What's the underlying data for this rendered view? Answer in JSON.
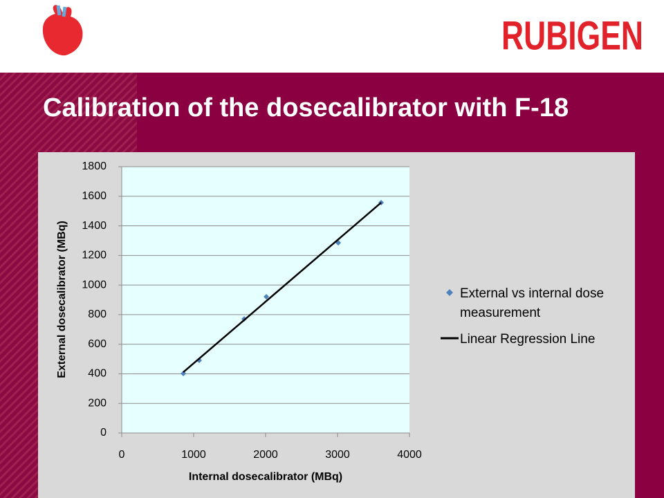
{
  "header": {
    "brand": "RUBIGEN"
  },
  "chart_data": {
    "type": "scatter",
    "title": "Calibration of the dosecalibrator with F-18",
    "x_label": "Internal dosecalibrator (MBq)",
    "y_label": "External dosecalibrator (MBq)",
    "series": [
      {
        "name": "External vs internal dose measurement",
        "color": "#4f81bd",
        "marker": "diamond",
        "x": [
          856,
          1077,
          1702,
          2010,
          3010,
          3606
        ],
        "values": [
          402,
          491,
          771,
          921,
          1286,
          1557
        ]
      },
      {
        "name": "Linear Regression Line",
        "color": "#000000",
        "type": "line",
        "x": [
          856,
          3606
        ],
        "values": [
          411,
          1557
        ]
      }
    ],
    "xlim": [
      0,
      4000
    ],
    "xticks": [
      0,
      1000,
      2000,
      3000,
      4000
    ],
    "ylim": [
      0,
      1800
    ],
    "yticks": [
      0,
      200,
      400,
      600,
      800,
      1000,
      1200,
      1400,
      1600,
      1800
    ],
    "grid": "y",
    "legend": "right"
  }
}
